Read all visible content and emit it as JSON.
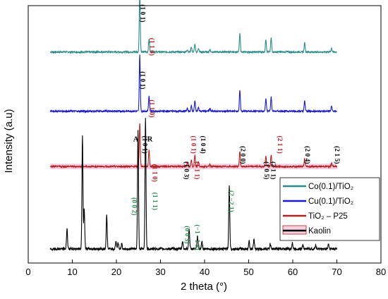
{
  "chart_data": {
    "type": "line",
    "xlabel": "2 theta (°)",
    "ylabel": "Intensity (a.u)",
    "xlim": [
      0,
      80
    ],
    "xticks": [
      "0",
      "10",
      "20",
      "30",
      "40",
      "50",
      "60",
      "70",
      "80"
    ],
    "grid": false,
    "legend_position": "right",
    "series": [
      {
        "name": "Co(0.1)/TiO₂",
        "color": "#2e8b8b",
        "baseline": 0.82,
        "noise": 0.003,
        "peaks": [
          [
            25.3,
            0.23
          ],
          [
            27.4,
            0.05
          ],
          [
            36.1,
            0.01
          ],
          [
            37.0,
            0.02
          ],
          [
            37.8,
            0.03
          ],
          [
            38.6,
            0.015
          ],
          [
            41.2,
            0.01
          ],
          [
            48.0,
            0.07
          ],
          [
            53.9,
            0.05
          ],
          [
            55.1,
            0.055
          ],
          [
            62.7,
            0.035
          ],
          [
            68.8,
            0.015
          ],
          [
            70.3,
            0.015
          ]
        ]
      },
      {
        "name": "Cu(0.1)/TiO₂",
        "color": "#1a1acd",
        "baseline": 0.59,
        "noise": 0.003,
        "peaks": [
          [
            25.3,
            0.22
          ],
          [
            27.4,
            0.06
          ],
          [
            36.1,
            0.01
          ],
          [
            37.0,
            0.02
          ],
          [
            37.8,
            0.04
          ],
          [
            38.6,
            0.015
          ],
          [
            41.2,
            0.01
          ],
          [
            48.0,
            0.08
          ],
          [
            53.9,
            0.05
          ],
          [
            55.1,
            0.055
          ],
          [
            62.7,
            0.04
          ],
          [
            68.8,
            0.02
          ],
          [
            70.3,
            0.02
          ]
        ]
      },
      {
        "name": "TiO₂ – P25",
        "color": "#b22222",
        "baseline": 0.375,
        "noise": 0.003,
        "peaks": [
          [
            25.3,
            0.17
          ],
          [
            27.4,
            0.065
          ],
          [
            36.1,
            0.015
          ],
          [
            37.0,
            0.025
          ],
          [
            37.8,
            0.045
          ],
          [
            38.6,
            0.02
          ],
          [
            41.2,
            0.01
          ],
          [
            48.0,
            0.06
          ],
          [
            53.9,
            0.04
          ],
          [
            55.1,
            0.045
          ],
          [
            62.7,
            0.03
          ],
          [
            68.8,
            0.015
          ],
          [
            70.3,
            0.015
          ]
        ]
      },
      {
        "name": "Kaolin",
        "color": "#000000",
        "baseline": 0.055,
        "noise": 0.005,
        "peaks": [
          [
            8.8,
            0.08
          ],
          [
            12.3,
            0.44
          ],
          [
            12.7,
            0.16
          ],
          [
            17.8,
            0.13
          ],
          [
            19.9,
            0.03
          ],
          [
            20.4,
            0.025
          ],
          [
            21.2,
            0.02
          ],
          [
            24.9,
            0.46
          ],
          [
            26.6,
            0.51
          ],
          [
            35.0,
            0.03
          ],
          [
            36.5,
            0.08
          ],
          [
            38.4,
            0.05
          ],
          [
            39.4,
            0.03
          ],
          [
            45.6,
            0.25
          ],
          [
            50.1,
            0.03
          ],
          [
            51.2,
            0.035
          ],
          [
            54.9,
            0.02
          ],
          [
            59.9,
            0.025
          ],
          [
            62.3,
            0.02
          ],
          [
            65.2,
            0.015
          ],
          [
            68.1,
            0.02
          ]
        ]
      }
    ],
    "highlight_band": {
      "series": "TiO₂ – P25",
      "xrange": [
        5,
        70
      ],
      "color": "#f6cfe0"
    },
    "annotations": [
      {
        "text": "(1 0 1)",
        "x": 25.5,
        "y": 0.97,
        "color": "#000000"
      },
      {
        "text": "(1 1 0)",
        "x": 27.6,
        "y": 0.84,
        "color": "#b22222"
      },
      {
        "text": "(1 0 1)",
        "x": 25.5,
        "y": 0.71,
        "color": "#000000"
      },
      {
        "text": "(1 1 0)",
        "x": 27.6,
        "y": 0.6,
        "color": "#b22222"
      },
      {
        "text": "(1 0 1)",
        "x": 26.0,
        "y": 0.46,
        "color": "#000000"
      },
      {
        "text": "(1 1 0)",
        "x": 28.2,
        "y": 0.35,
        "color": "#b22222"
      },
      {
        "text": "(1 0 3)",
        "x": 35.4,
        "y": 0.36,
        "color": "#000000"
      },
      {
        "text": "(1 0 1)",
        "x": 37.0,
        "y": 0.46,
        "color": "#b22222"
      },
      {
        "text": "(1 1 1)",
        "x": 37.8,
        "y": 0.36,
        "color": "#b22222"
      },
      {
        "text": "(1 0 4)",
        "x": 39.2,
        "y": 0.46,
        "color": "#000000"
      },
      {
        "text": "(2 0 0)",
        "x": 48.2,
        "y": 0.42,
        "color": "#000000"
      },
      {
        "text": "(1 0 5)",
        "x": 53.6,
        "y": 0.36,
        "color": "#000000"
      },
      {
        "text": "(2 1 1)",
        "x": 55.1,
        "y": 0.36,
        "color": "#000000"
      },
      {
        "text": "(2 1 1)",
        "x": 56.6,
        "y": 0.46,
        "color": "#b22222"
      },
      {
        "text": "(2 0 4)",
        "x": 62.9,
        "y": 0.42,
        "color": "#000000"
      },
      {
        "text": "(2 1 5)",
        "x": 69.6,
        "y": 0.42,
        "color": "#000000"
      },
      {
        "text": "(0 0 2)",
        "x": 23.6,
        "y": 0.22,
        "color": "#2e8b57"
      },
      {
        "text": "(1 1 1)",
        "x": 28.3,
        "y": 0.24,
        "color": "#2e8b57"
      },
      {
        "text": "(0 0 3)",
        "x": 35.6,
        "y": 0.11,
        "color": "#2e8b57"
      },
      {
        "text": "(−1 −1 3)",
        "x": 37.9,
        "y": 0.1,
        "color": "#2e8b57"
      },
      {
        "text": "(2 −2   1)",
        "x": 45.6,
        "y": 0.24,
        "color": "#2e8b57"
      }
    ],
    "phase_labels": [
      {
        "text": "A",
        "x": 24.4,
        "y": 0.472
      },
      {
        "text": "R",
        "x": 27.6,
        "y": 0.472
      }
    ]
  }
}
